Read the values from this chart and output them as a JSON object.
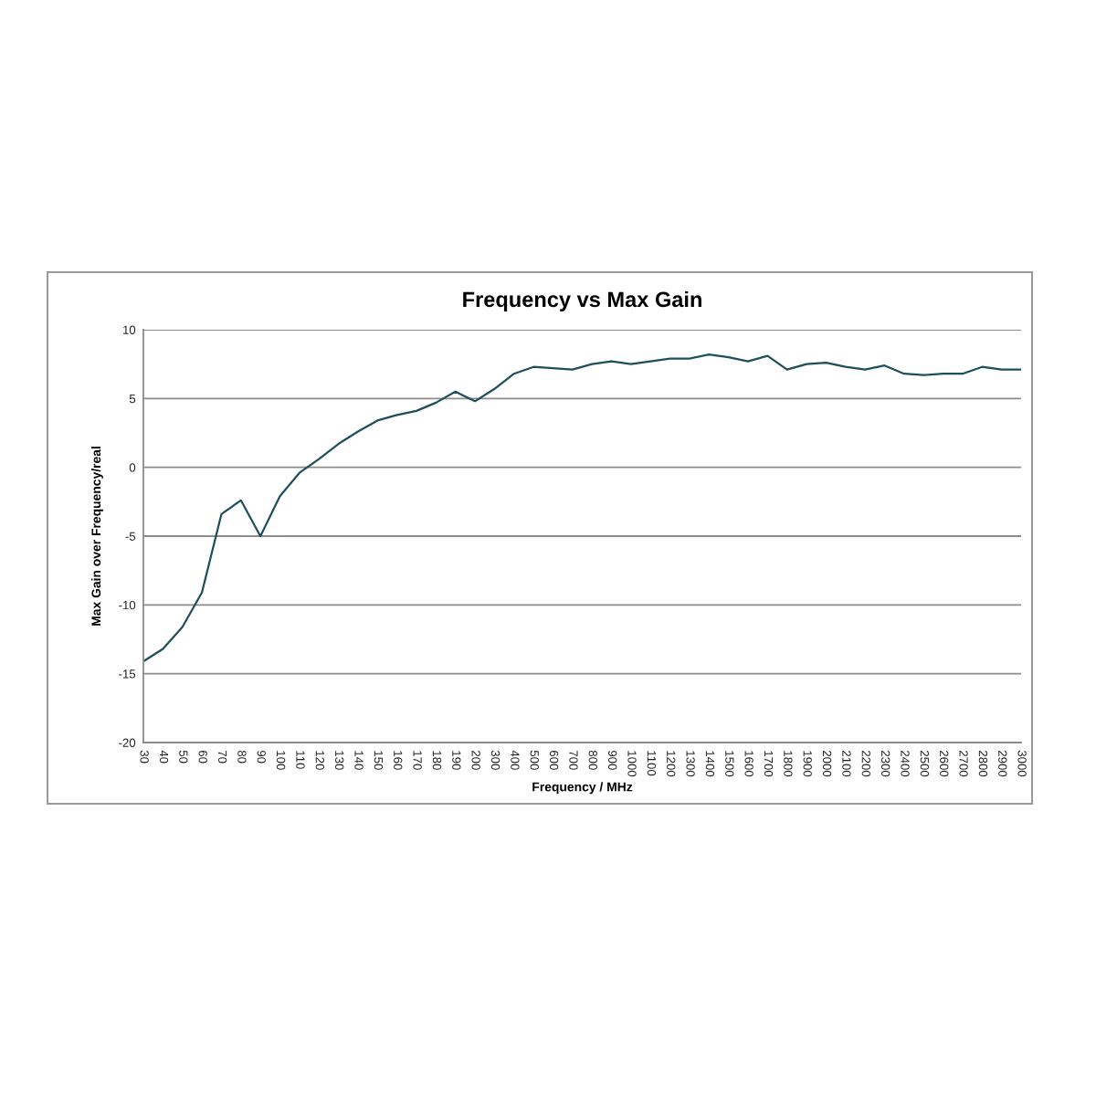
{
  "chart_data": {
    "type": "line",
    "title": "Frequency vs Max Gain",
    "xlabel": "Frequency / MHz",
    "ylabel": "Max Gain over Frequency/real",
    "categories": [
      "30",
      "40",
      "50",
      "60",
      "70",
      "80",
      "90",
      "100",
      "110",
      "120",
      "130",
      "140",
      "150",
      "160",
      "170",
      "180",
      "190",
      "200",
      "300",
      "400",
      "500",
      "600",
      "700",
      "800",
      "900",
      "1000",
      "1100",
      "1200",
      "1300",
      "1400",
      "1500",
      "1600",
      "1700",
      "1800",
      "1900",
      "2000",
      "2100",
      "2200",
      "2300",
      "2400",
      "2500",
      "2600",
      "2700",
      "2800",
      "2900",
      "3000"
    ],
    "series": [
      {
        "color": "#1d4f5c",
        "values": [
          -14.1,
          -13.2,
          -11.6,
          -9.1,
          -3.4,
          -2.4,
          -5.0,
          -2.1,
          -0.4,
          0.6,
          1.7,
          2.6,
          3.4,
          3.8,
          4.1,
          4.7,
          5.5,
          4.8,
          5.7,
          6.8,
          7.3,
          7.2,
          7.1,
          7.5,
          7.7,
          7.5,
          7.7,
          7.9,
          7.9,
          8.2,
          8.0,
          7.7,
          8.1,
          7.1,
          7.5,
          7.6,
          7.3,
          7.1,
          7.4,
          6.8,
          6.7,
          6.8,
          6.8,
          7.3,
          7.1,
          7.1
        ]
      }
    ],
    "ylim": [
      -20,
      10
    ],
    "yticks": [
      -20,
      -15,
      -10,
      -5,
      0,
      5,
      10
    ],
    "grid": "y",
    "line_style": "solid"
  }
}
